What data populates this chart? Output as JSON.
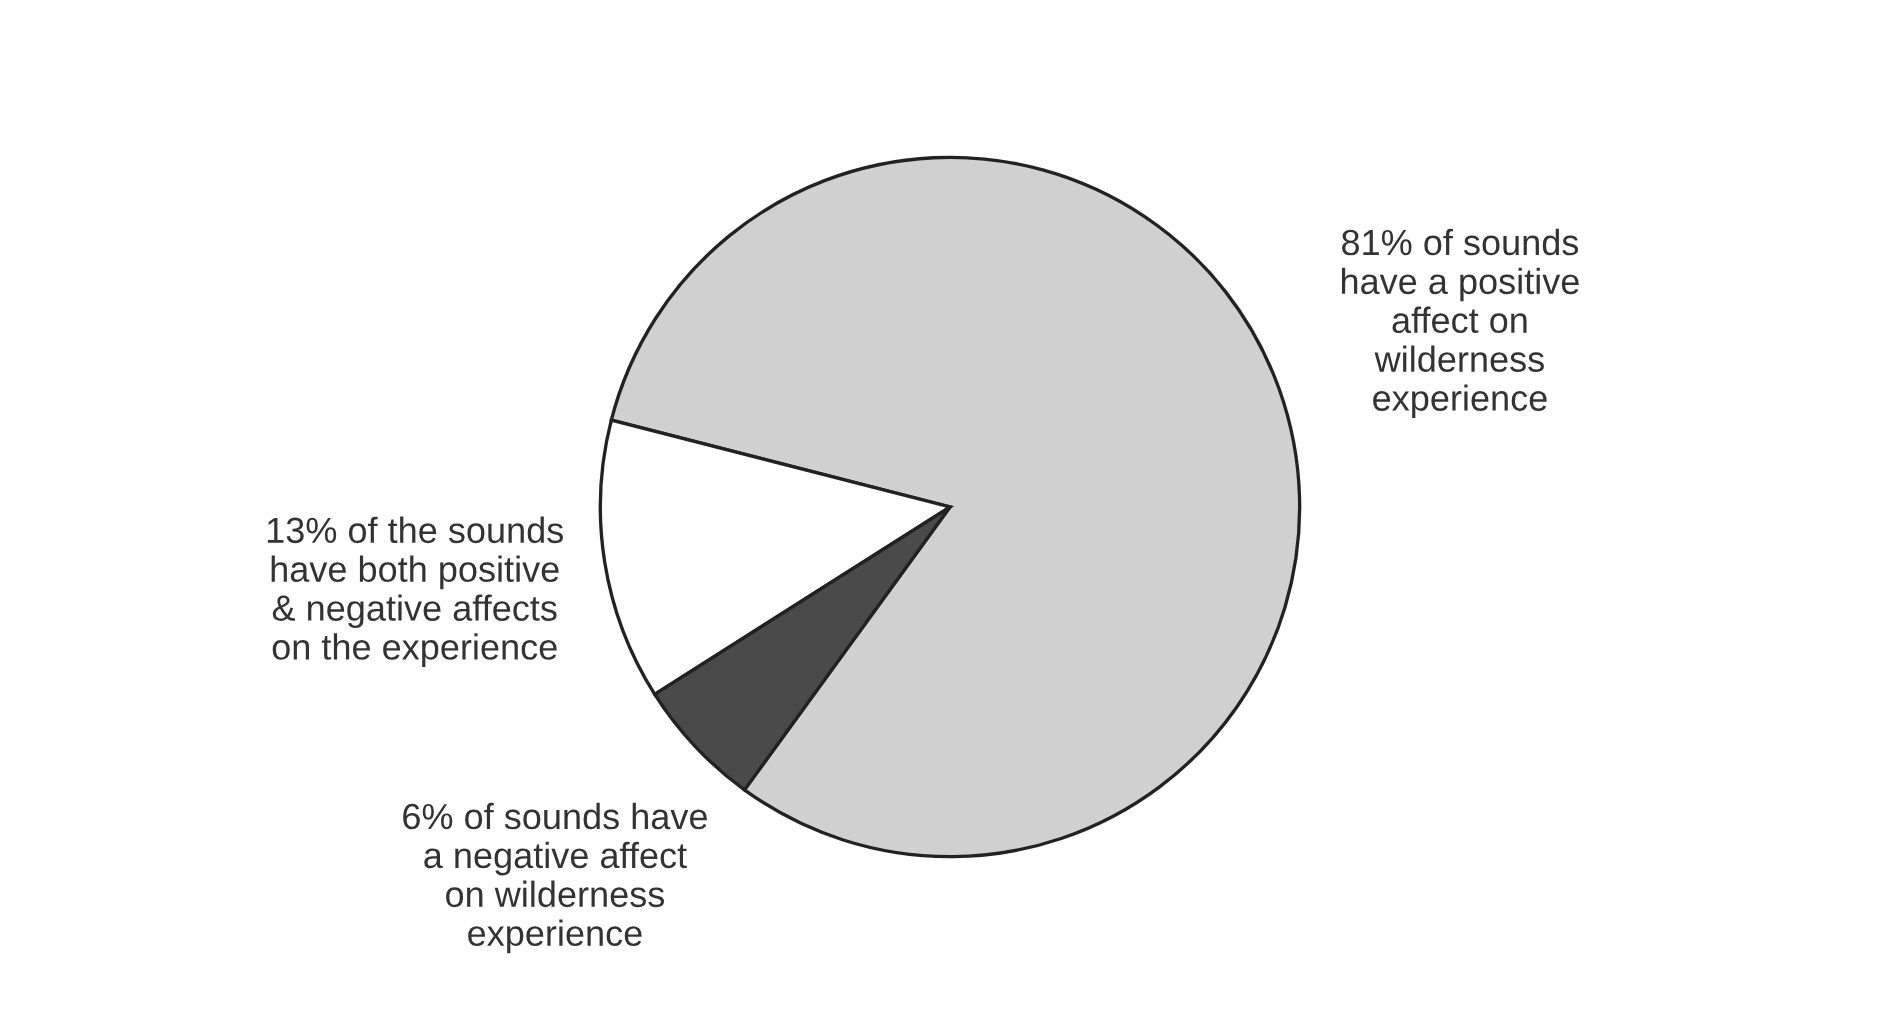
{
  "chart_data": {
    "type": "pie",
    "categories": [
      "81% of sounds\nhave a positive\naffect on\nwilderness\nexperience",
      "13% of the sounds\nhave both positive\n& negative affects\non the experience",
      "6% of sounds have\na negative affect\non wilderness\nexperience"
    ],
    "values": [
      81,
      13,
      6
    ],
    "colors": [
      "#d0d0d0",
      "#ffffff",
      "#4a4a4a"
    ],
    "legend": false
  }
}
